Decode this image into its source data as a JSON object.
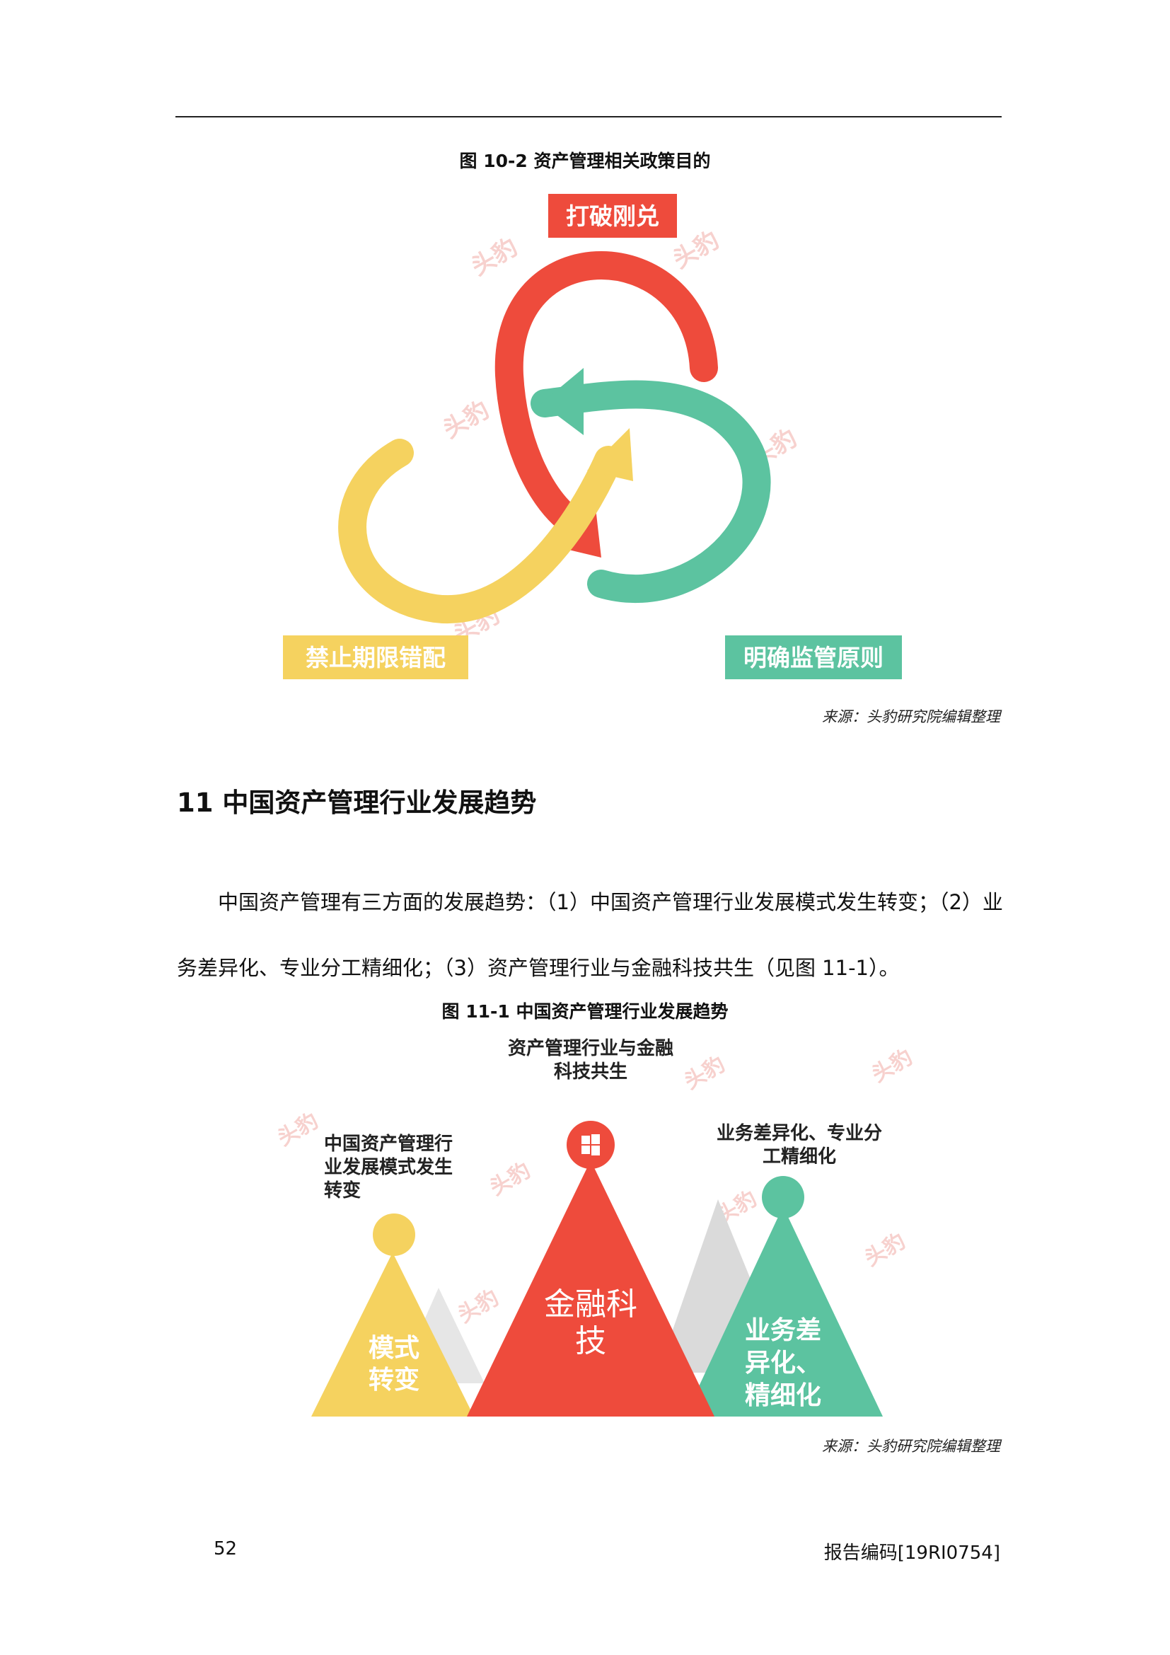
{
  "fig1": {
    "caption": "图 10-2 资产管理相关政策目的",
    "labels": {
      "top": "打破刚兑",
      "left": "禁止期限错配",
      "right": "明确监管原则"
    },
    "colors": {
      "red": "#ee4b3c",
      "yellow": "#f5d25f",
      "green": "#5cc3a0"
    },
    "source": "来源：头豹研究院编辑整理"
  },
  "section": {
    "title": "11 中国资产管理行业发展趋势"
  },
  "paragraph": {
    "line1": "中国资产管理有三方面的发展趋势：（1）中国资产管理行业发展模式发生转变；（2）业",
    "line2": "务差异化、专业分工精细化；（3）资产管理行业与金融科技共生（见图 11-1）。"
  },
  "fig2": {
    "caption": "图 11-1 中国资产管理行业发展趋势",
    "left_label": [
      "中国资产管理行",
      "业发展模式发生",
      "转变"
    ],
    "left_inner": [
      "模式",
      "转变"
    ],
    "center_label": [
      "资产管理行业与金融",
      "科技共生"
    ],
    "center_inner": [
      "金融科",
      "技"
    ],
    "right_label": [
      "业务差异化、专业分",
      "工精细化"
    ],
    "right_inner": [
      "业务差",
      "异化、",
      "精细化"
    ],
    "source": "来源：头豹研究院编辑整理"
  },
  "footer": {
    "page": "52",
    "code": "报告编码[19RI0754]"
  }
}
